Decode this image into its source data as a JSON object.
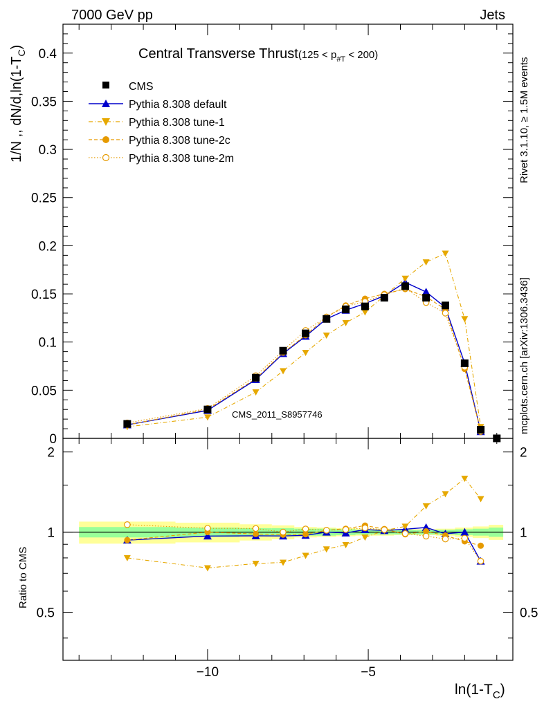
{
  "header": {
    "left": "7000 GeV pp",
    "right": "Jets",
    "side_top": "Rivet 3.1.10, ≥ 1.5M events",
    "side_bottom": "mcplots.cern.ch [arXiv:1306.3436]"
  },
  "chart_data": {
    "type": "line",
    "title_main": "Central Transverse Thrust",
    "title_range_pre": "(125 < p",
    "title_range_sub": "#T",
    "title_range_post": " < 200)",
    "watermark": "CMS_2011_S8957746",
    "ylabel_main": "1/N ,, dN/d,ln(1-T",
    "ylabel_sub": "C",
    "ylabel_close": ")",
    "ylabel_ratio": "Ratio to CMS",
    "xlabel_main": "ln(1-T",
    "xlabel_sub": "C",
    "xlabel_close": ")",
    "xlim": [
      -14.5,
      -0.5
    ],
    "ylim_main": [
      0,
      0.43
    ],
    "ylim_ratio": [
      0.33,
      2.25
    ],
    "x_ticks": [
      -10,
      -5
    ],
    "x_tick_labels": [
      "−10",
      "−5"
    ],
    "y_ticks_main": [
      "0",
      "0.05",
      "0.1",
      "0.15",
      "0.2",
      "0.25",
      "0.3",
      "0.35",
      "0.4"
    ],
    "y_ticks_ratio": [
      "0.5",
      "1",
      "2"
    ],
    "bin_edges": [
      -14.0,
      -11.0,
      -9.0,
      -8.0,
      -7.3,
      -6.6,
      -6.0,
      -5.4,
      -4.8,
      -4.2,
      -3.5,
      -2.9,
      -2.3,
      -1.75,
      -1.25,
      -0.8
    ],
    "cms_band_inner": [
      0.045,
      0.04,
      0.035,
      0.035,
      0.03,
      0.03,
      0.025,
      0.02,
      0.02,
      0.02,
      0.02,
      0.02,
      0.025,
      0.03,
      0.04
    ],
    "cms_band_outer": [
      0.095,
      0.085,
      0.07,
      0.06,
      0.045,
      0.04,
      0.035,
      0.03,
      0.03,
      0.025,
      0.025,
      0.03,
      0.04,
      0.05,
      0.065
    ],
    "x": [
      -12.5,
      -10.0,
      -8.5,
      -7.65,
      -6.95,
      -6.3,
      -5.7,
      -5.1,
      -4.5,
      -3.85,
      -3.2,
      -2.6,
      -2.0,
      -1.5,
      -1.0
    ],
    "series": [
      {
        "name": "CMS",
        "color": "#000000",
        "marker": "square",
        "line": "none",
        "values": [
          0.015,
          0.03,
          0.063,
          0.091,
          0.109,
          0.124,
          0.134,
          0.137,
          0.146,
          0.158,
          0.146,
          0.138,
          0.078,
          0.009,
          0.0
        ]
      },
      {
        "name": "Pythia 8.308 default",
        "color": "#0000cc",
        "marker": "triangle-up",
        "line": "solid",
        "values": [
          0.014,
          0.029,
          0.061,
          0.088,
          0.106,
          0.124,
          0.133,
          0.14,
          0.148,
          0.162,
          0.152,
          0.136,
          0.078,
          0.007,
          null
        ]
      },
      {
        "name": "Pythia 8.308 tune-1",
        "color": "#e6a800",
        "marker": "triangle-down",
        "line": "dashdot",
        "values": [
          0.012,
          0.022,
          0.048,
          0.07,
          0.089,
          0.107,
          0.12,
          0.131,
          0.148,
          0.166,
          0.183,
          0.192,
          0.124,
          0.012,
          null
        ]
      },
      {
        "name": "Pythia 8.308 tune-2c",
        "color": "#e69a00",
        "marker": "circle",
        "line": "dashed",
        "values": [
          0.014,
          0.03,
          0.062,
          0.089,
          0.107,
          0.126,
          0.138,
          0.145,
          0.15,
          0.155,
          0.147,
          0.134,
          0.072,
          0.008,
          null
        ]
      },
      {
        "name": "Pythia 8.308 tune-2m",
        "color": "#e69a00",
        "marker": "circle-open",
        "line": "dotted",
        "values": [
          0.016,
          0.031,
          0.065,
          0.091,
          0.112,
          0.126,
          0.137,
          0.142,
          0.149,
          0.156,
          0.141,
          0.13,
          0.074,
          0.007,
          null
        ]
      }
    ]
  }
}
